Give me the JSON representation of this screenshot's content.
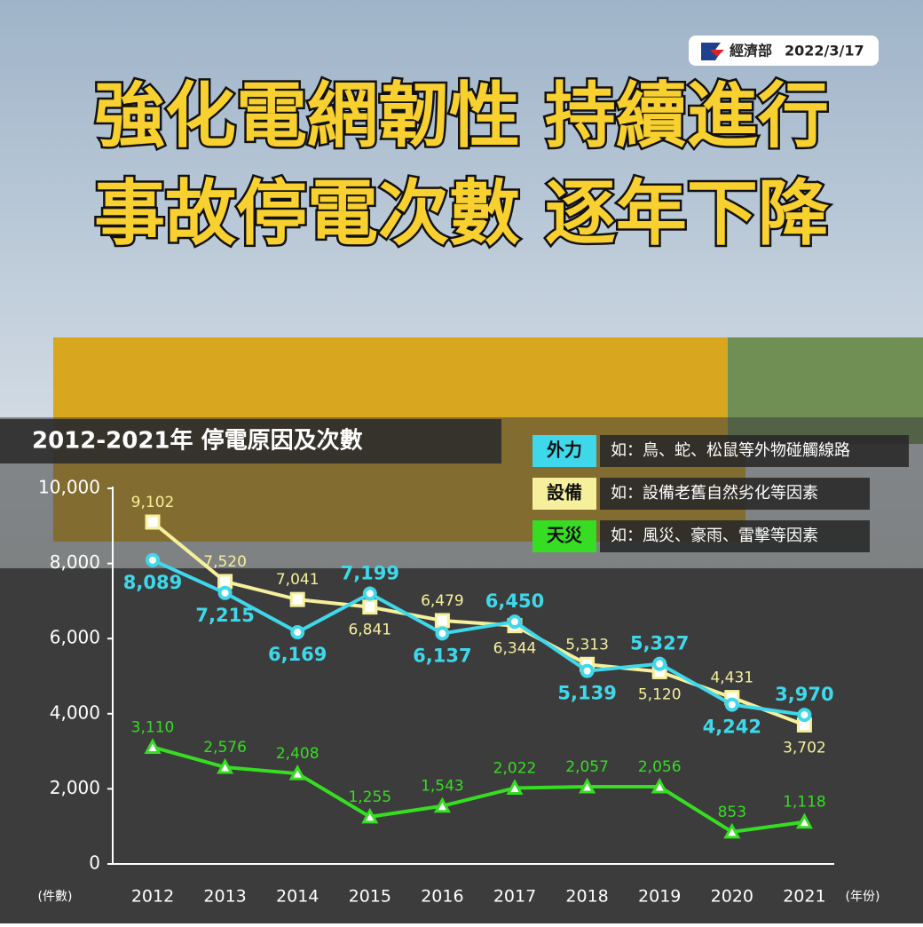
{
  "header": {
    "org": "經濟部",
    "date": "2022/3/17",
    "title_lines": [
      "強化電網韌性 持續進行",
      "事故停電次數 逐年下降"
    ]
  },
  "chart_data": {
    "type": "line",
    "title": "2012-2021年 停電原因及次數",
    "categories": [
      "2012",
      "2013",
      "2014",
      "2015",
      "2016",
      "2017",
      "2018",
      "2019",
      "2020",
      "2021"
    ],
    "y_unit": "(件數)",
    "x_unit": "(年份)",
    "ylim": [
      0,
      10000
    ],
    "yticks": [
      0,
      {
        "value": 2000,
        "label": "2,000"
      },
      {
        "value": 4000,
        "label": "4,000"
      },
      {
        "value": 6000,
        "label": "6,000"
      },
      {
        "value": 8000,
        "label": "8,000"
      },
      {
        "value": 10000,
        "label": "10,000"
      }
    ],
    "series": [
      {
        "name": "外力",
        "description": "如：鳥、蛇、松鼠等外物碰觸線路",
        "color": "#3fd8ea",
        "marker": "circle",
        "values": [
          8089,
          7215,
          6169,
          7199,
          6137,
          6450,
          5139,
          5327,
          4242,
          3970
        ],
        "value_labels": [
          "8,089",
          "7,215",
          "6,169",
          "7,199",
          "6,137",
          "6,450",
          "5,139",
          "5,327",
          "4,242",
          "3,970"
        ]
      },
      {
        "name": "設備",
        "description": "如：設備老舊自然劣化等因素",
        "color": "#f6f09c",
        "marker": "square",
        "values": [
          9102,
          7520,
          7041,
          6841,
          6479,
          6344,
          5313,
          5120,
          4431,
          3702
        ],
        "value_labels": [
          "9,102",
          "7,520",
          "7,041",
          "6,841",
          "6,479",
          "6,344",
          "5,313",
          "5,120",
          "4,431",
          "3,702"
        ]
      },
      {
        "name": "天災",
        "description": "如：風災、豪雨、雷擊等因素",
        "color": "#36dd22",
        "marker": "triangle",
        "values": [
          3110,
          2576,
          2408,
          1255,
          1543,
          2022,
          2057,
          2056,
          853,
          1118
        ],
        "value_labels": [
          "3,110",
          "2,576",
          "2,408",
          "1,255",
          "1,543",
          "2,022",
          "2,057",
          "2,056",
          "853",
          "1,118"
        ]
      }
    ]
  }
}
